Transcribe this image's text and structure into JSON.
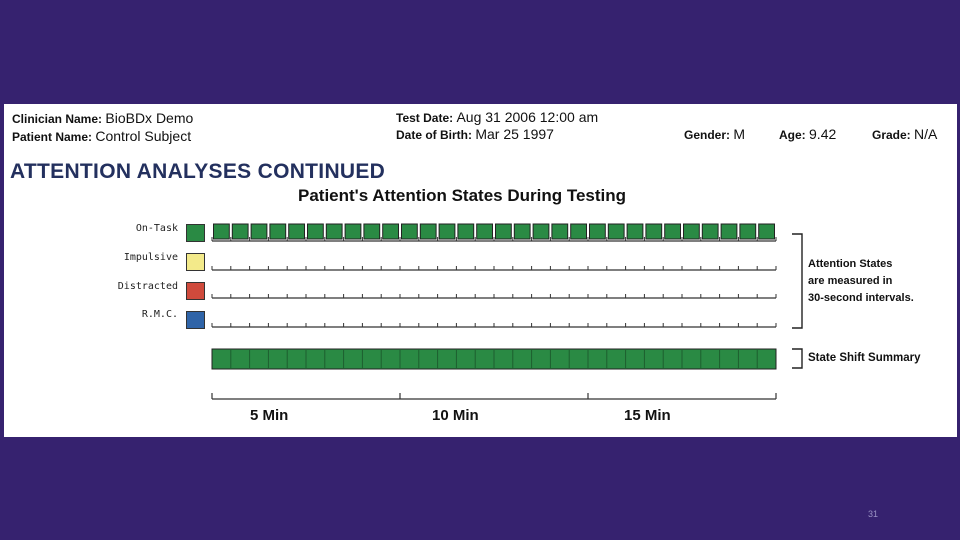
{
  "header": {
    "clinician_label": "Clinician Name:",
    "clinician_value": "BioBDx Demo",
    "patient_label": "Patient Name:",
    "patient_value": "Control Subject",
    "test_date_label": "Test Date:",
    "test_date_value": "Aug 31 2006 12:00 am",
    "dob_label": "Date of Birth:",
    "dob_value": "Mar 25 1997",
    "gender_label": "Gender:",
    "gender_value": "M",
    "age_label": "Age:",
    "age_value": "9.42",
    "grade_label": "Grade:",
    "grade_value": "N/A"
  },
  "section_title": "ATTENTION ANALYSES CONTINUED",
  "chart_data": {
    "type": "table",
    "title": "Patient's Attention States During Testing",
    "interval_seconds": 30,
    "interval_count": 30,
    "rows": [
      {
        "label": "On-Task",
        "color": "#2a8a44",
        "filled_intervals": 30
      },
      {
        "label": "Impulsive",
        "color": "#f3ea8a",
        "filled_intervals": 0
      },
      {
        "label": "Distracted",
        "color": "#cf4a3c",
        "filled_intervals": 0
      },
      {
        "label": "R.M.C.",
        "color": "#2f64a8",
        "filled_intervals": 0
      }
    ],
    "summary_label": "State Shift Summary",
    "summary_color": "#2a8a44",
    "note_lines": [
      "Attention States",
      "are measured in",
      "30-second intervals."
    ],
    "x_ticks": [
      "5 Min",
      "10 Min",
      "15 Min"
    ]
  },
  "page_number": "31"
}
